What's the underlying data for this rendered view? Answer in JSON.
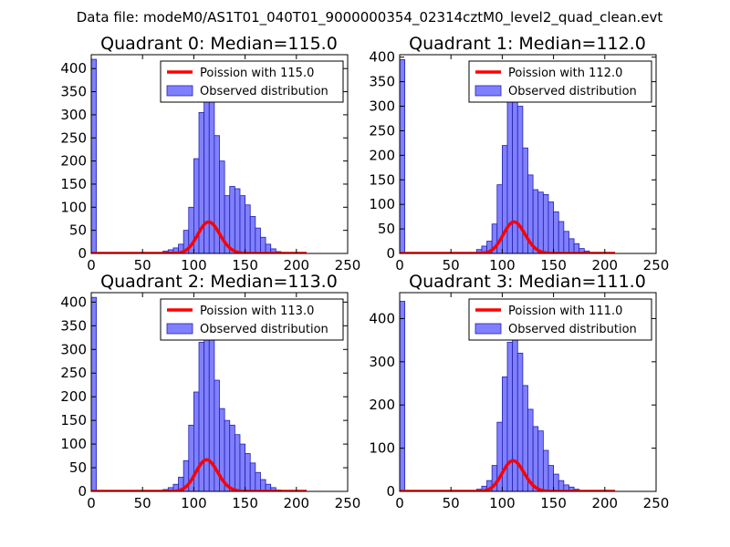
{
  "figure_title": "Data file: modeM0/AS1T01_040T01_9000000354_02314cztM0_level2_quad_clean.evt",
  "colors": {
    "bar_fill": "#8080ff",
    "bar_edge": "#2020b0",
    "fit_line": "#ff0000",
    "axes": "#000000"
  },
  "chart_data": [
    {
      "type": "bar",
      "title": "Quadrant 0: Median=115.0",
      "xlim": [
        0,
        250
      ],
      "ylim": [
        0,
        430
      ],
      "xticks": [
        0,
        50,
        100,
        150,
        200,
        250
      ],
      "yticks": [
        0,
        50,
        100,
        150,
        200,
        250,
        300,
        350,
        400
      ],
      "bin_width": 5,
      "bins": [
        0,
        5,
        10,
        15,
        20,
        25,
        30,
        35,
        40,
        45,
        50,
        55,
        60,
        65,
        70,
        75,
        80,
        85,
        90,
        95,
        100,
        105,
        110,
        115,
        120,
        125,
        130,
        135,
        140,
        145,
        150,
        155,
        160,
        165,
        170,
        175,
        180,
        185,
        190,
        195,
        200,
        205,
        210,
        215,
        220,
        225,
        230,
        235,
        240,
        245
      ],
      "values": [
        420,
        0,
        0,
        0,
        0,
        0,
        0,
        0,
        0,
        0,
        0,
        0,
        0,
        2,
        5,
        8,
        12,
        20,
        50,
        100,
        205,
        305,
        390,
        340,
        255,
        200,
        125,
        145,
        140,
        125,
        105,
        80,
        55,
        35,
        20,
        10,
        4,
        2,
        1,
        0,
        0,
        0,
        0,
        0,
        0,
        0,
        0,
        0,
        0,
        0
      ],
      "fit": {
        "type": "poisson",
        "mean": 115.0,
        "scale": 1830,
        "x_range": [
          0,
          210
        ]
      },
      "legend": [
        "Poission with 115.0",
        "Observed distribution"
      ]
    },
    {
      "type": "bar",
      "title": "Quadrant 1: Median=112.0",
      "xlim": [
        0,
        250
      ],
      "ylim": [
        0,
        405
      ],
      "xticks": [
        0,
        50,
        100,
        150,
        200,
        250
      ],
      "yticks": [
        0,
        50,
        100,
        150,
        200,
        250,
        300,
        350,
        400
      ],
      "bin_width": 5,
      "bins": [
        0,
        5,
        10,
        15,
        20,
        25,
        30,
        35,
        40,
        45,
        50,
        55,
        60,
        65,
        70,
        75,
        80,
        85,
        90,
        95,
        100,
        105,
        110,
        115,
        120,
        125,
        130,
        135,
        140,
        145,
        150,
        155,
        160,
        165,
        170,
        175,
        180,
        185,
        190,
        195,
        200,
        205,
        210,
        215,
        220,
        225,
        230,
        235,
        240,
        245
      ],
      "values": [
        395,
        0,
        0,
        0,
        0,
        0,
        0,
        0,
        0,
        0,
        0,
        0,
        0,
        0,
        2,
        8,
        15,
        25,
        60,
        140,
        220,
        330,
        375,
        300,
        215,
        160,
        130,
        125,
        120,
        105,
        85,
        65,
        45,
        30,
        20,
        10,
        5,
        2,
        1,
        0,
        0,
        0,
        0,
        0,
        0,
        0,
        0,
        0,
        0,
        0
      ],
      "fit": {
        "type": "poisson",
        "mean": 112.0,
        "scale": 1705,
        "x_range": [
          0,
          210
        ]
      },
      "legend": [
        "Poission with 112.0",
        "Observed distribution"
      ]
    },
    {
      "type": "bar",
      "title": "Quadrant 2: Median=113.0",
      "xlim": [
        0,
        250
      ],
      "ylim": [
        0,
        420
      ],
      "xticks": [
        0,
        50,
        100,
        150,
        200,
        250
      ],
      "yticks": [
        0,
        50,
        100,
        150,
        200,
        250,
        300,
        350,
        400
      ],
      "bin_width": 5,
      "bins": [
        0,
        5,
        10,
        15,
        20,
        25,
        30,
        35,
        40,
        45,
        50,
        55,
        60,
        65,
        70,
        75,
        80,
        85,
        90,
        95,
        100,
        105,
        110,
        115,
        120,
        125,
        130,
        135,
        140,
        145,
        150,
        155,
        160,
        165,
        170,
        175,
        180,
        185,
        190,
        195,
        200,
        205,
        210,
        215,
        220,
        225,
        230,
        235,
        240,
        245
      ],
      "values": [
        410,
        0,
        0,
        0,
        0,
        0,
        0,
        0,
        0,
        0,
        0,
        0,
        0,
        2,
        4,
        8,
        15,
        30,
        65,
        140,
        210,
        315,
        385,
        330,
        235,
        175,
        150,
        140,
        120,
        100,
        80,
        60,
        40,
        25,
        15,
        8,
        3,
        2,
        1,
        0,
        0,
        0,
        0,
        0,
        0,
        0,
        0,
        0,
        0,
        0
      ],
      "fit": {
        "type": "poisson",
        "mean": 113.0,
        "scale": 1780,
        "x_range": [
          0,
          210
        ]
      },
      "legend": [
        "Poission with 113.0",
        "Observed distribution"
      ]
    },
    {
      "type": "bar",
      "title": "Quadrant 3: Median=111.0",
      "xlim": [
        0,
        250
      ],
      "ylim": [
        0,
        460
      ],
      "xticks": [
        0,
        50,
        100,
        150,
        200,
        250
      ],
      "yticks": [
        0,
        100,
        200,
        300,
        400
      ],
      "bin_width": 5,
      "bins": [
        0,
        5,
        10,
        15,
        20,
        25,
        30,
        35,
        40,
        45,
        50,
        55,
        60,
        65,
        70,
        75,
        80,
        85,
        90,
        95,
        100,
        105,
        110,
        115,
        120,
        125,
        130,
        135,
        140,
        145,
        150,
        155,
        160,
        165,
        170,
        175,
        180,
        185,
        190,
        195,
        200,
        205,
        210,
        215,
        220,
        225,
        230,
        235,
        240,
        245
      ],
      "values": [
        440,
        0,
        0,
        0,
        0,
        0,
        0,
        0,
        0,
        0,
        0,
        0,
        0,
        0,
        2,
        5,
        12,
        25,
        60,
        160,
        265,
        345,
        440,
        320,
        245,
        190,
        150,
        140,
        95,
        60,
        40,
        25,
        15,
        10,
        5,
        2,
        1,
        0,
        0,
        0,
        0,
        0,
        0,
        0,
        0,
        0,
        0,
        0,
        0,
        0
      ],
      "fit": {
        "type": "poisson",
        "mean": 111.0,
        "scale": 1880,
        "x_range": [
          0,
          210
        ]
      },
      "legend": [
        "Poission with 111.0",
        "Observed distribution"
      ]
    }
  ]
}
